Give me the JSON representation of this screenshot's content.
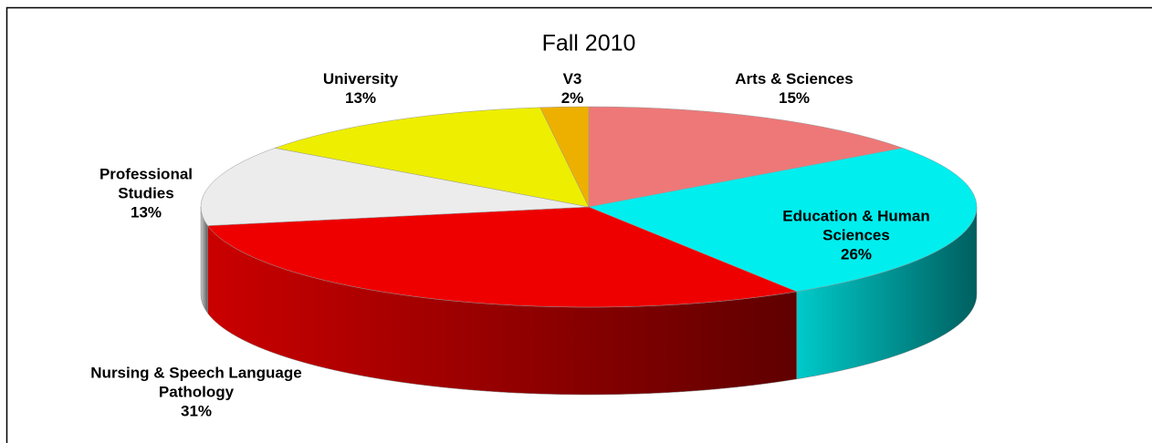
{
  "chart_data": {
    "type": "pie3d",
    "title": "Fall 2010",
    "categories": [
      "Arts & Sciences",
      "Education & Human Sciences",
      "Nursing & Speech Language Pathology",
      "Professional Studies",
      "University",
      "V3"
    ],
    "values": [
      15,
      26,
      31,
      13,
      13,
      2
    ],
    "value_labels": [
      "15%",
      "26%",
      "31%",
      "13%",
      "13%",
      "2%"
    ],
    "colors": [
      "#ee7878",
      "#00eeee",
      "#ee0000",
      "#ececec",
      "#eeee00",
      "#eeb000"
    ]
  }
}
